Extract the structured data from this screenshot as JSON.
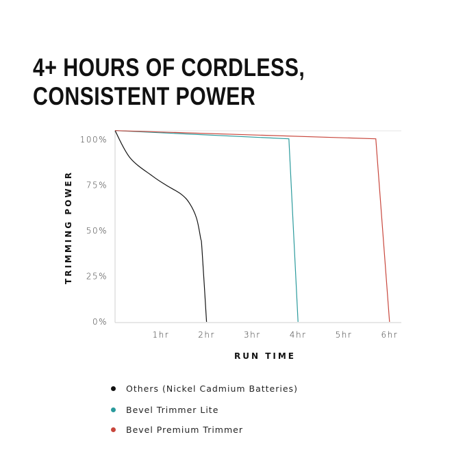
{
  "title_lines": [
    "4+ HOURS OF CORDLESS,",
    "CONSISTENT POWER"
  ],
  "chart_data": {
    "type": "line",
    "title": "4+ HOURS OF CORDLESS, CONSISTENT POWER",
    "xlabel": "RUN TIME",
    "ylabel": "TRIMMING POWER",
    "xlim": [
      0,
      6.3
    ],
    "ylim": [
      0,
      105
    ],
    "x_ticks": [
      {
        "v": 1,
        "label": "1hr"
      },
      {
        "v": 2,
        "label": "2hr"
      },
      {
        "v": 3,
        "label": "3hr"
      },
      {
        "v": 4,
        "label": "4hr"
      },
      {
        "v": 5,
        "label": "5hr"
      },
      {
        "v": 6,
        "label": "6hr"
      }
    ],
    "y_ticks": [
      {
        "v": 0,
        "label": "0%"
      },
      {
        "v": 25,
        "label": "25%"
      },
      {
        "v": 50,
        "label": "50%"
      },
      {
        "v": 75,
        "label": "75%"
      },
      {
        "v": 100,
        "label": "100%"
      }
    ],
    "grid": false,
    "legend_position": "bottom",
    "series": [
      {
        "name": "Others (Nickel Cadmium Batteries)",
        "color": "#111111",
        "points": [
          [
            0,
            105
          ],
          [
            0.33,
            90
          ],
          [
            0.82,
            80
          ],
          [
            1.12,
            75
          ],
          [
            1.45,
            70
          ],
          [
            1.63,
            65
          ],
          [
            1.78,
            57
          ],
          [
            1.87,
            46
          ],
          [
            1.9,
            40
          ],
          [
            2.0,
            0
          ]
        ]
      },
      {
        "name": "Bevel Trimmer Lite",
        "color": "#2a9a9c",
        "points": [
          [
            0,
            105
          ],
          [
            3.8,
            100.5
          ],
          [
            4.0,
            0
          ]
        ]
      },
      {
        "name": "Bevel Premium Trimmer",
        "color": "#c8463c",
        "points": [
          [
            0,
            105
          ],
          [
            5.7,
            100.5
          ],
          [
            6.0,
            0
          ]
        ]
      }
    ]
  }
}
